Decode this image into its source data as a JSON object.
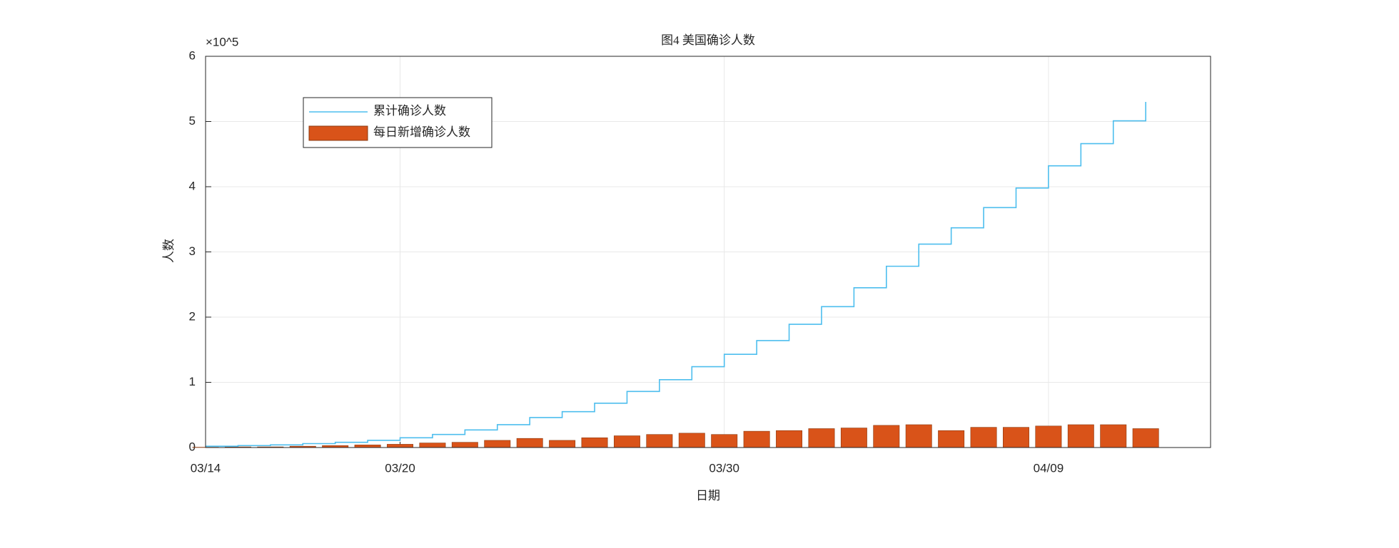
{
  "chart_data": {
    "type": "bar-line",
    "title": "图4 美国确诊人数",
    "x_label": "日期",
    "y_label": "人数",
    "y_multiplier": "×10^5",
    "categories": [
      "03/14",
      null,
      null,
      null,
      null,
      null,
      "03/20",
      null,
      null,
      null,
      null,
      null,
      null,
      null,
      null,
      null,
      "03/30",
      null,
      null,
      null,
      null,
      null,
      null,
      null,
      null,
      null,
      "04/09",
      null,
      null,
      null
    ],
    "series": [
      {
        "name": "累计确诊人数",
        "color": "#4dbeee",
        "kind": "stairs",
        "values": [
          0.02,
          0.03,
          0.04,
          0.06,
          0.08,
          0.11,
          0.15,
          0.2,
          0.27,
          0.35,
          0.46,
          0.55,
          0.68,
          0.86,
          1.04,
          1.24,
          1.43,
          1.64,
          1.89,
          2.16,
          2.45,
          2.78,
          3.12,
          3.37,
          3.68,
          3.98,
          4.32,
          4.66,
          5.01,
          5.3
        ]
      },
      {
        "name": "每日新增确诊人数",
        "color": "#d95319",
        "kind": "bar",
        "values": [
          0.005,
          0.01,
          0.01,
          0.02,
          0.03,
          0.04,
          0.05,
          0.07,
          0.08,
          0.11,
          0.14,
          0.11,
          0.15,
          0.18,
          0.2,
          0.22,
          0.2,
          0.25,
          0.26,
          0.29,
          0.3,
          0.34,
          0.35,
          0.26,
          0.31,
          0.31,
          0.33,
          0.35,
          0.35,
          0.29
        ]
      }
    ],
    "ylim": [
      0,
      6
    ],
    "yticks": [
      0,
      1,
      2,
      3,
      4,
      5,
      6
    ],
    "grid": true,
    "legend": "upper left"
  }
}
